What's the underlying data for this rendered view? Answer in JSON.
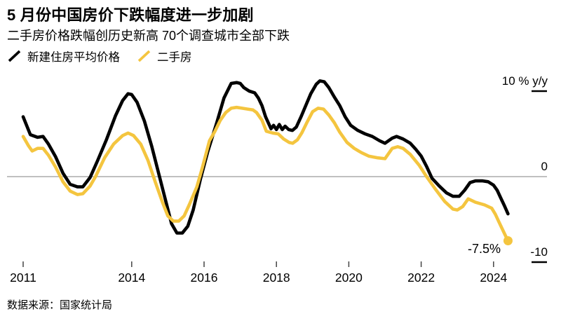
{
  "header": {
    "title": "5 月份中国房价下跌幅度进一步加剧",
    "subtitle": "二手房价格跌幅创历史新高 70个调查城市全部下跌"
  },
  "legend": {
    "items": [
      {
        "label": "新建住房平均价格",
        "color": "#000000"
      },
      {
        "label": "二手房",
        "color": "#F4C53F"
      }
    ]
  },
  "annotation": {
    "end_value_label": "-7.5%"
  },
  "source": "数据来源：国家统计局",
  "colors": {
    "line_new_homes": "#000000",
    "line_secondhand": "#F4C53F",
    "zero_line": "#808080",
    "tick": "#444444",
    "level_mark": "#000000"
  },
  "chart_data": {
    "type": "line",
    "title": "5 月份中国房价下跌幅度进一步加剧",
    "subtitle": "二手房价格跌幅创历史新高 70个调查城市全部下跌",
    "ylabel": "% y/y",
    "ylim": [
      -12,
      12.5
    ],
    "x_range": [
      2010.55,
      2025.1
    ],
    "grid": "zero-line-only",
    "legend_position": "top-left",
    "y_ticks": [
      {
        "value": 10,
        "label": "10 % y/y",
        "mark": true,
        "line": false
      },
      {
        "value": 0,
        "label": "0",
        "mark": false,
        "line": true
      },
      {
        "value": -10,
        "label": "-10",
        "mark": true,
        "line": false
      }
    ],
    "x_ticks": [
      {
        "value": 2011,
        "label": "2011"
      },
      {
        "value": 2014,
        "label": "2014"
      },
      {
        "value": 2016,
        "label": "2016"
      },
      {
        "value": 2018,
        "label": "2018"
      },
      {
        "value": 2020,
        "label": "2020"
      },
      {
        "value": 2022,
        "label": "2022"
      },
      {
        "value": 2024,
        "label": "2024"
      }
    ],
    "series": [
      {
        "name": "新建住房平均价格",
        "id": "new-homes",
        "color": "#000000",
        "end_dot": false,
        "points": [
          [
            2011.0,
            7.0
          ],
          [
            2011.2,
            4.9
          ],
          [
            2011.4,
            4.6
          ],
          [
            2011.55,
            4.7
          ],
          [
            2011.7,
            3.8
          ],
          [
            2011.9,
            2.3
          ],
          [
            2012.1,
            0.4
          ],
          [
            2012.3,
            -0.9
          ],
          [
            2012.5,
            -1.2
          ],
          [
            2012.65,
            -1.2
          ],
          [
            2012.85,
            -0.1
          ],
          [
            2013.05,
            1.8
          ],
          [
            2013.3,
            4.3
          ],
          [
            2013.55,
            7.1
          ],
          [
            2013.75,
            8.9
          ],
          [
            2013.9,
            9.7
          ],
          [
            2014.0,
            9.6
          ],
          [
            2014.15,
            8.7
          ],
          [
            2014.35,
            6.5
          ],
          [
            2014.55,
            3.6
          ],
          [
            2014.75,
            0.3
          ],
          [
            2014.95,
            -3.0
          ],
          [
            2015.1,
            -5.5
          ],
          [
            2015.25,
            -6.6
          ],
          [
            2015.4,
            -6.6
          ],
          [
            2015.55,
            -5.8
          ],
          [
            2015.7,
            -3.9
          ],
          [
            2015.9,
            -0.3
          ],
          [
            2016.1,
            2.9
          ],
          [
            2016.35,
            6.3
          ],
          [
            2016.55,
            9.2
          ],
          [
            2016.75,
            10.9
          ],
          [
            2016.9,
            11.0
          ],
          [
            2017.0,
            10.9
          ],
          [
            2017.1,
            10.4
          ],
          [
            2017.25,
            10.0
          ],
          [
            2017.4,
            9.8
          ],
          [
            2017.5,
            9.2
          ],
          [
            2017.6,
            8.3
          ],
          [
            2017.7,
            7.0
          ],
          [
            2017.85,
            5.6
          ],
          [
            2017.92,
            6.0
          ],
          [
            2018.0,
            5.5
          ],
          [
            2018.08,
            6.1
          ],
          [
            2018.16,
            5.5
          ],
          [
            2018.24,
            5.9
          ],
          [
            2018.34,
            5.5
          ],
          [
            2018.44,
            5.4
          ],
          [
            2018.55,
            5.8
          ],
          [
            2018.68,
            7.0
          ],
          [
            2018.82,
            8.4
          ],
          [
            2018.95,
            9.7
          ],
          [
            2019.1,
            10.8
          ],
          [
            2019.2,
            11.2
          ],
          [
            2019.32,
            11.1
          ],
          [
            2019.45,
            10.4
          ],
          [
            2019.6,
            9.3
          ],
          [
            2019.75,
            8.3
          ],
          [
            2019.9,
            7.0
          ],
          [
            2020.05,
            6.0
          ],
          [
            2020.25,
            5.4
          ],
          [
            2020.45,
            5.0
          ],
          [
            2020.65,
            4.7
          ],
          [
            2020.85,
            4.2
          ],
          [
            2021.0,
            3.9
          ],
          [
            2021.2,
            4.5
          ],
          [
            2021.32,
            4.7
          ],
          [
            2021.5,
            4.4
          ],
          [
            2021.7,
            3.9
          ],
          [
            2021.85,
            3.2
          ],
          [
            2022.0,
            2.4
          ],
          [
            2022.15,
            1.2
          ],
          [
            2022.3,
            -0.2
          ],
          [
            2022.5,
            -1.1
          ],
          [
            2022.7,
            -1.9
          ],
          [
            2022.88,
            -2.3
          ],
          [
            2023.05,
            -2.3
          ],
          [
            2023.2,
            -1.6
          ],
          [
            2023.35,
            -0.7
          ],
          [
            2023.5,
            -0.5
          ],
          [
            2023.7,
            -0.5
          ],
          [
            2023.85,
            -0.6
          ],
          [
            2024.0,
            -1.0
          ],
          [
            2024.1,
            -1.6
          ],
          [
            2024.2,
            -2.5
          ],
          [
            2024.3,
            -3.4
          ],
          [
            2024.4,
            -4.35
          ]
        ]
      },
      {
        "name": "二手房",
        "id": "secondhand",
        "color": "#F4C53F",
        "end_dot": true,
        "end_label": "-7.5%",
        "points": [
          [
            2011.0,
            4.7
          ],
          [
            2011.15,
            3.6
          ],
          [
            2011.25,
            3.0
          ],
          [
            2011.4,
            3.3
          ],
          [
            2011.55,
            3.3
          ],
          [
            2011.7,
            2.5
          ],
          [
            2011.9,
            1.1
          ],
          [
            2012.1,
            -0.6
          ],
          [
            2012.3,
            -1.7
          ],
          [
            2012.5,
            -2.1
          ],
          [
            2012.65,
            -2.0
          ],
          [
            2012.85,
            -1.1
          ],
          [
            2013.0,
            0.0
          ],
          [
            2013.25,
            2.2
          ],
          [
            2013.5,
            3.8
          ],
          [
            2013.75,
            4.8
          ],
          [
            2013.9,
            5.1
          ],
          [
            2014.05,
            4.8
          ],
          [
            2014.25,
            3.8
          ],
          [
            2014.45,
            1.9
          ],
          [
            2014.65,
            -0.6
          ],
          [
            2014.85,
            -3.0
          ],
          [
            2015.0,
            -4.6
          ],
          [
            2015.15,
            -5.2
          ],
          [
            2015.3,
            -5.2
          ],
          [
            2015.45,
            -4.6
          ],
          [
            2015.6,
            -3.2
          ],
          [
            2015.8,
            -1.2
          ],
          [
            2015.95,
            1.0
          ],
          [
            2016.15,
            4.2
          ],
          [
            2016.3,
            5.3
          ],
          [
            2016.45,
            6.6
          ],
          [
            2016.6,
            7.5
          ],
          [
            2016.75,
            8.0
          ],
          [
            2016.9,
            8.1
          ],
          [
            2017.05,
            8.0
          ],
          [
            2017.2,
            7.9
          ],
          [
            2017.35,
            7.8
          ],
          [
            2017.45,
            7.5
          ],
          [
            2017.6,
            6.6
          ],
          [
            2017.72,
            5.3
          ],
          [
            2017.9,
            5.1
          ],
          [
            2018.05,
            5.0
          ],
          [
            2018.2,
            4.4
          ],
          [
            2018.35,
            4.0
          ],
          [
            2018.45,
            3.9
          ],
          [
            2018.58,
            4.3
          ],
          [
            2018.7,
            5.1
          ],
          [
            2018.85,
            6.4
          ],
          [
            2019.0,
            7.6
          ],
          [
            2019.15,
            8.0
          ],
          [
            2019.3,
            7.9
          ],
          [
            2019.45,
            7.2
          ],
          [
            2019.6,
            6.3
          ],
          [
            2019.75,
            5.2
          ],
          [
            2019.95,
            4.0
          ],
          [
            2020.15,
            3.3
          ],
          [
            2020.35,
            2.8
          ],
          [
            2020.55,
            2.4
          ],
          [
            2020.8,
            2.2
          ],
          [
            2021.0,
            2.1
          ],
          [
            2021.2,
            3.3
          ],
          [
            2021.35,
            3.5
          ],
          [
            2021.5,
            3.3
          ],
          [
            2021.7,
            2.6
          ],
          [
            2021.95,
            1.3
          ],
          [
            2022.15,
            0.0
          ],
          [
            2022.4,
            -1.5
          ],
          [
            2022.65,
            -2.9
          ],
          [
            2022.88,
            -3.8
          ],
          [
            2023.0,
            -3.9
          ],
          [
            2023.15,
            -3.5
          ],
          [
            2023.3,
            -2.6
          ],
          [
            2023.5,
            -3.0
          ],
          [
            2023.75,
            -3.3
          ],
          [
            2023.95,
            -3.7
          ],
          [
            2024.05,
            -4.4
          ],
          [
            2024.15,
            -5.3
          ],
          [
            2024.25,
            -6.2
          ],
          [
            2024.33,
            -6.9
          ],
          [
            2024.4,
            -7.5
          ]
        ]
      }
    ],
    "source": "数据来源：国家统计局"
  }
}
